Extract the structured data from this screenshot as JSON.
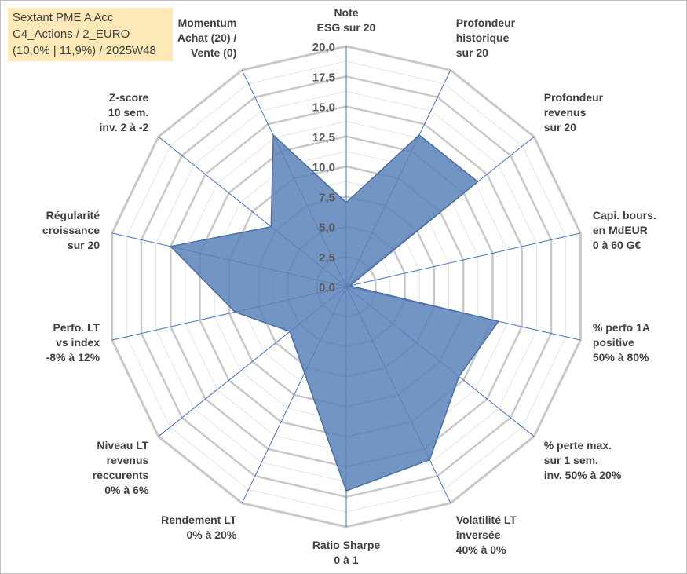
{
  "title_box": {
    "line1": "Sextant PME A Acc",
    "line2": "C4_Actions / 2_EURO",
    "line3": "(10,0% | 11,9%) / 2025W48"
  },
  "colors": {
    "grid": "#c8c8c8",
    "spoke": "#4472c4",
    "fill": "#5b83b9",
    "stroke": "#4a6fa5",
    "title_bg": "#fde9b8"
  },
  "chart_data": {
    "type": "radar",
    "title": "Sextant PME A Acc",
    "subtitle": "C4_Actions / 2_EURO (10,0% | 11,9%) / 2025W48",
    "rlim": [
      0,
      20
    ],
    "ticks": [
      "0,0",
      "2,5",
      "5,0",
      "7,5",
      "10,0",
      "12,5",
      "15,0",
      "17,5",
      "20,0"
    ],
    "grid": true,
    "categories": [
      [
        "Note",
        "ESG sur 20"
      ],
      [
        "Profondeur",
        "historique",
        "sur 20"
      ],
      [
        "Profondeur",
        "revenus",
        "sur 20"
      ],
      [
        "Capi. bours.",
        "en MdEUR",
        "0 à 60 G€"
      ],
      [
        "% perfo 1A",
        "positive",
        "50% à 80%"
      ],
      [
        "% perte max.",
        "sur 1 sem.",
        "inv. 50% à 20%"
      ],
      [
        "Volatilité LT",
        "inversée",
        "40% à 0%"
      ],
      [
        "Ratio Sharpe",
        "0 à 1"
      ],
      [
        "Rendement LT",
        "0% à 20%"
      ],
      [
        "Niveau LT",
        "revenus",
        "reccurents",
        "0% à 6%"
      ],
      [
        "Perfo. LT",
        "vs index",
        "-8% à 12%"
      ],
      [
        "Régularité",
        "croissance",
        "sur 20"
      ],
      [
        "Z-score",
        "10 sem.",
        "inv. 2 à -2"
      ],
      [
        "Momentum",
        "Achat (20) /",
        "Vente (0)"
      ]
    ],
    "series": [
      {
        "name": "Sextant PME A Acc",
        "values": [
          7.0,
          14.0,
          14.0,
          0.3,
          13.0,
          12.0,
          16.0,
          17.0,
          8.0,
          6.0,
          9.5,
          15.0,
          8.0,
          14.0
        ]
      }
    ]
  }
}
